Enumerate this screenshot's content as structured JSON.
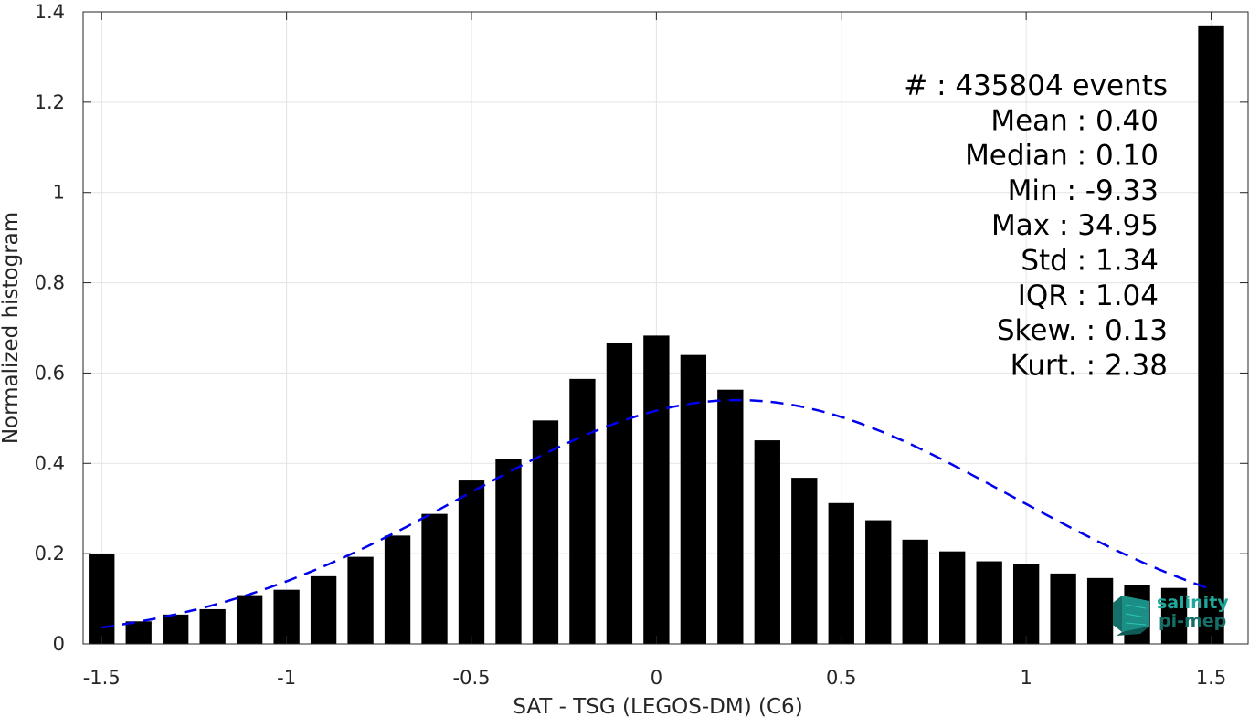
{
  "chart_data": {
    "type": "bar",
    "xlabel": "SAT - TSG (LEGOS-DM) (C6)",
    "ylabel": "Normalized histogram",
    "xlim": [
      -1.55,
      1.6
    ],
    "ylim": [
      0,
      1.4
    ],
    "xticks": [
      -1.5,
      -1,
      -0.5,
      0,
      0.5,
      1,
      1.5
    ],
    "xtick_labels": [
      "-1.5",
      "-1",
      "-0.5",
      "0",
      "0.5",
      "1",
      "1.5"
    ],
    "yticks": [
      0,
      0.2,
      0.4,
      0.6,
      0.8,
      1,
      1.2,
      1.4
    ],
    "ytick_labels": [
      "0",
      "0.2",
      "0.4",
      "0.6",
      "0.8",
      "1",
      "1.2",
      "1.4"
    ],
    "grid": true,
    "bar_color": "#000000",
    "bar_width": 0.07,
    "x": [
      -1.5,
      -1.4,
      -1.3,
      -1.2,
      -1.1,
      -1.0,
      -0.9,
      -0.8,
      -0.7,
      -0.6,
      -0.5,
      -0.4,
      -0.3,
      -0.2,
      -0.1,
      0.0,
      0.1,
      0.2,
      0.3,
      0.4,
      0.5,
      0.6,
      0.7,
      0.8,
      0.9,
      1.0,
      1.1,
      1.2,
      1.3,
      1.4,
      1.5
    ],
    "values": [
      0.2,
      0.05,
      0.065,
      0.077,
      0.108,
      0.12,
      0.15,
      0.193,
      0.24,
      0.288,
      0.362,
      0.41,
      0.495,
      0.587,
      0.667,
      0.683,
      0.64,
      0.563,
      0.451,
      0.368,
      0.312,
      0.274,
      0.231,
      0.205,
      0.183,
      0.178,
      0.156,
      0.146,
      0.131,
      0.124,
      1.37
    ],
    "fit_curve": {
      "style": "dashed",
      "color": "#0000ee",
      "mean": 0.22,
      "std": 0.74,
      "peak": 0.54,
      "x_range": [
        -1.5,
        1.5
      ]
    },
    "stats": [
      "#  : 435804 events",
      "Mean : 0.40",
      "Median : 0.10",
      "Min : -9.33",
      "Max : 34.95",
      "Std : 1.34",
      "IQR : 1.04",
      "Skew. : 0.13",
      "Kurt. : 2.38"
    ]
  },
  "logo": {
    "line1": "salinity",
    "line2": "pi-mep",
    "color": "#1fa89a"
  }
}
